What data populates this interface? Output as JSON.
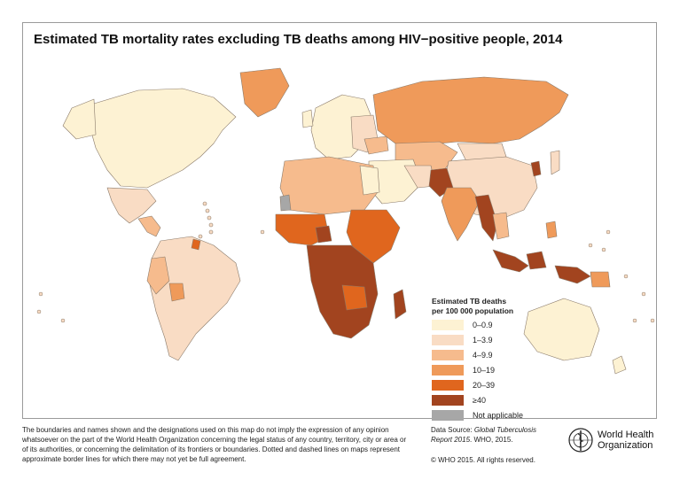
{
  "title": "Estimated TB mortality rates excluding TB deaths among HIV−positive people, 2014",
  "legend": {
    "title_line1": "Estimated TB deaths",
    "title_line2": "per 100 000 population",
    "items": [
      {
        "label": "0–0.9",
        "color": "#fdf2d3"
      },
      {
        "label": "1–3.9",
        "color": "#f9dcc4"
      },
      {
        "label": "4–9.9",
        "color": "#f6bb8d"
      },
      {
        "label": "10–19",
        "color": "#ef9a5a"
      },
      {
        "label": "20–39",
        "color": "#e0661e"
      },
      {
        "label": "≥40",
        "color": "#a2441f"
      },
      {
        "label": "Not applicable",
        "color": "#a7a7a7"
      }
    ]
  },
  "disclaimer": "The boundaries and names shown and the designations used on this map do not imply the expression of any opinion whatsoever on the part of the World Health Organization concerning the legal status of any country, territory, city or area or of its authorities, or concerning the delimitation of its frontiers or boundaries. Dotted and dashed lines on maps represent approximate border lines for which there may not yet be full agreement.",
  "source": {
    "prefix": "Data Source: ",
    "report": "Global Tuberculosis Report 2015",
    "suffix": ". WHO, 2015."
  },
  "copyright": "© WHO 2015. All rights reserved.",
  "who_logo": {
    "line1": "World Health",
    "line2": "Organization",
    "icon": "who-emblem-icon"
  },
  "colors": {
    "border": "#9a9a9a",
    "country_stroke": "#7a6a5a"
  }
}
